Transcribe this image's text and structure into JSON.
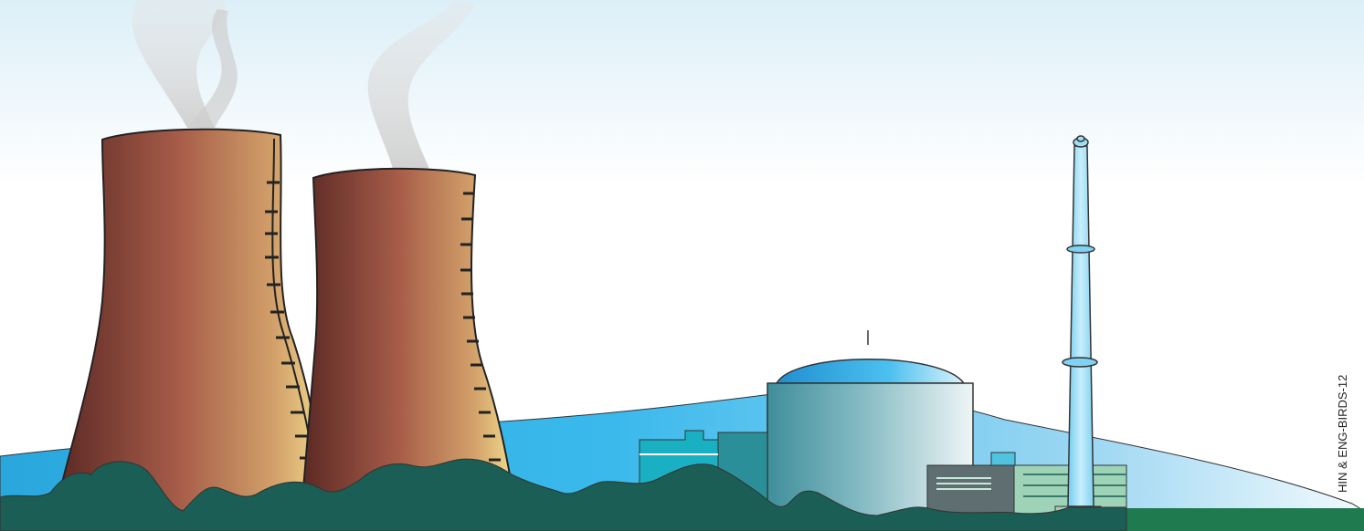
{
  "credit": "HIN & ENG-BIRDS-12",
  "colors": {
    "sky_top": "#dceff8",
    "sky_bottom": "#ffffff",
    "hill_dark": "#16a6e3",
    "hill_light": "#e6f5fc",
    "tower_dark": "#5c2a24",
    "tower_mid": "#a8604a",
    "tower_light": "#f0d98a",
    "ground": "#1a5e55",
    "field": "#1f7a4f",
    "dome": "#35a6dd",
    "containment_dark": "#3d8e9c",
    "containment_light": "#e6f1f3",
    "building_grey": "#5f6e70",
    "building_green": "#9fd3b8",
    "chimney": "#8ad6f2",
    "smoke": "#d8d8d8"
  },
  "icons": [
    "cooling-tower",
    "reactor-dome",
    "exhaust-chimney",
    "steam-plume",
    "tree-line"
  ]
}
